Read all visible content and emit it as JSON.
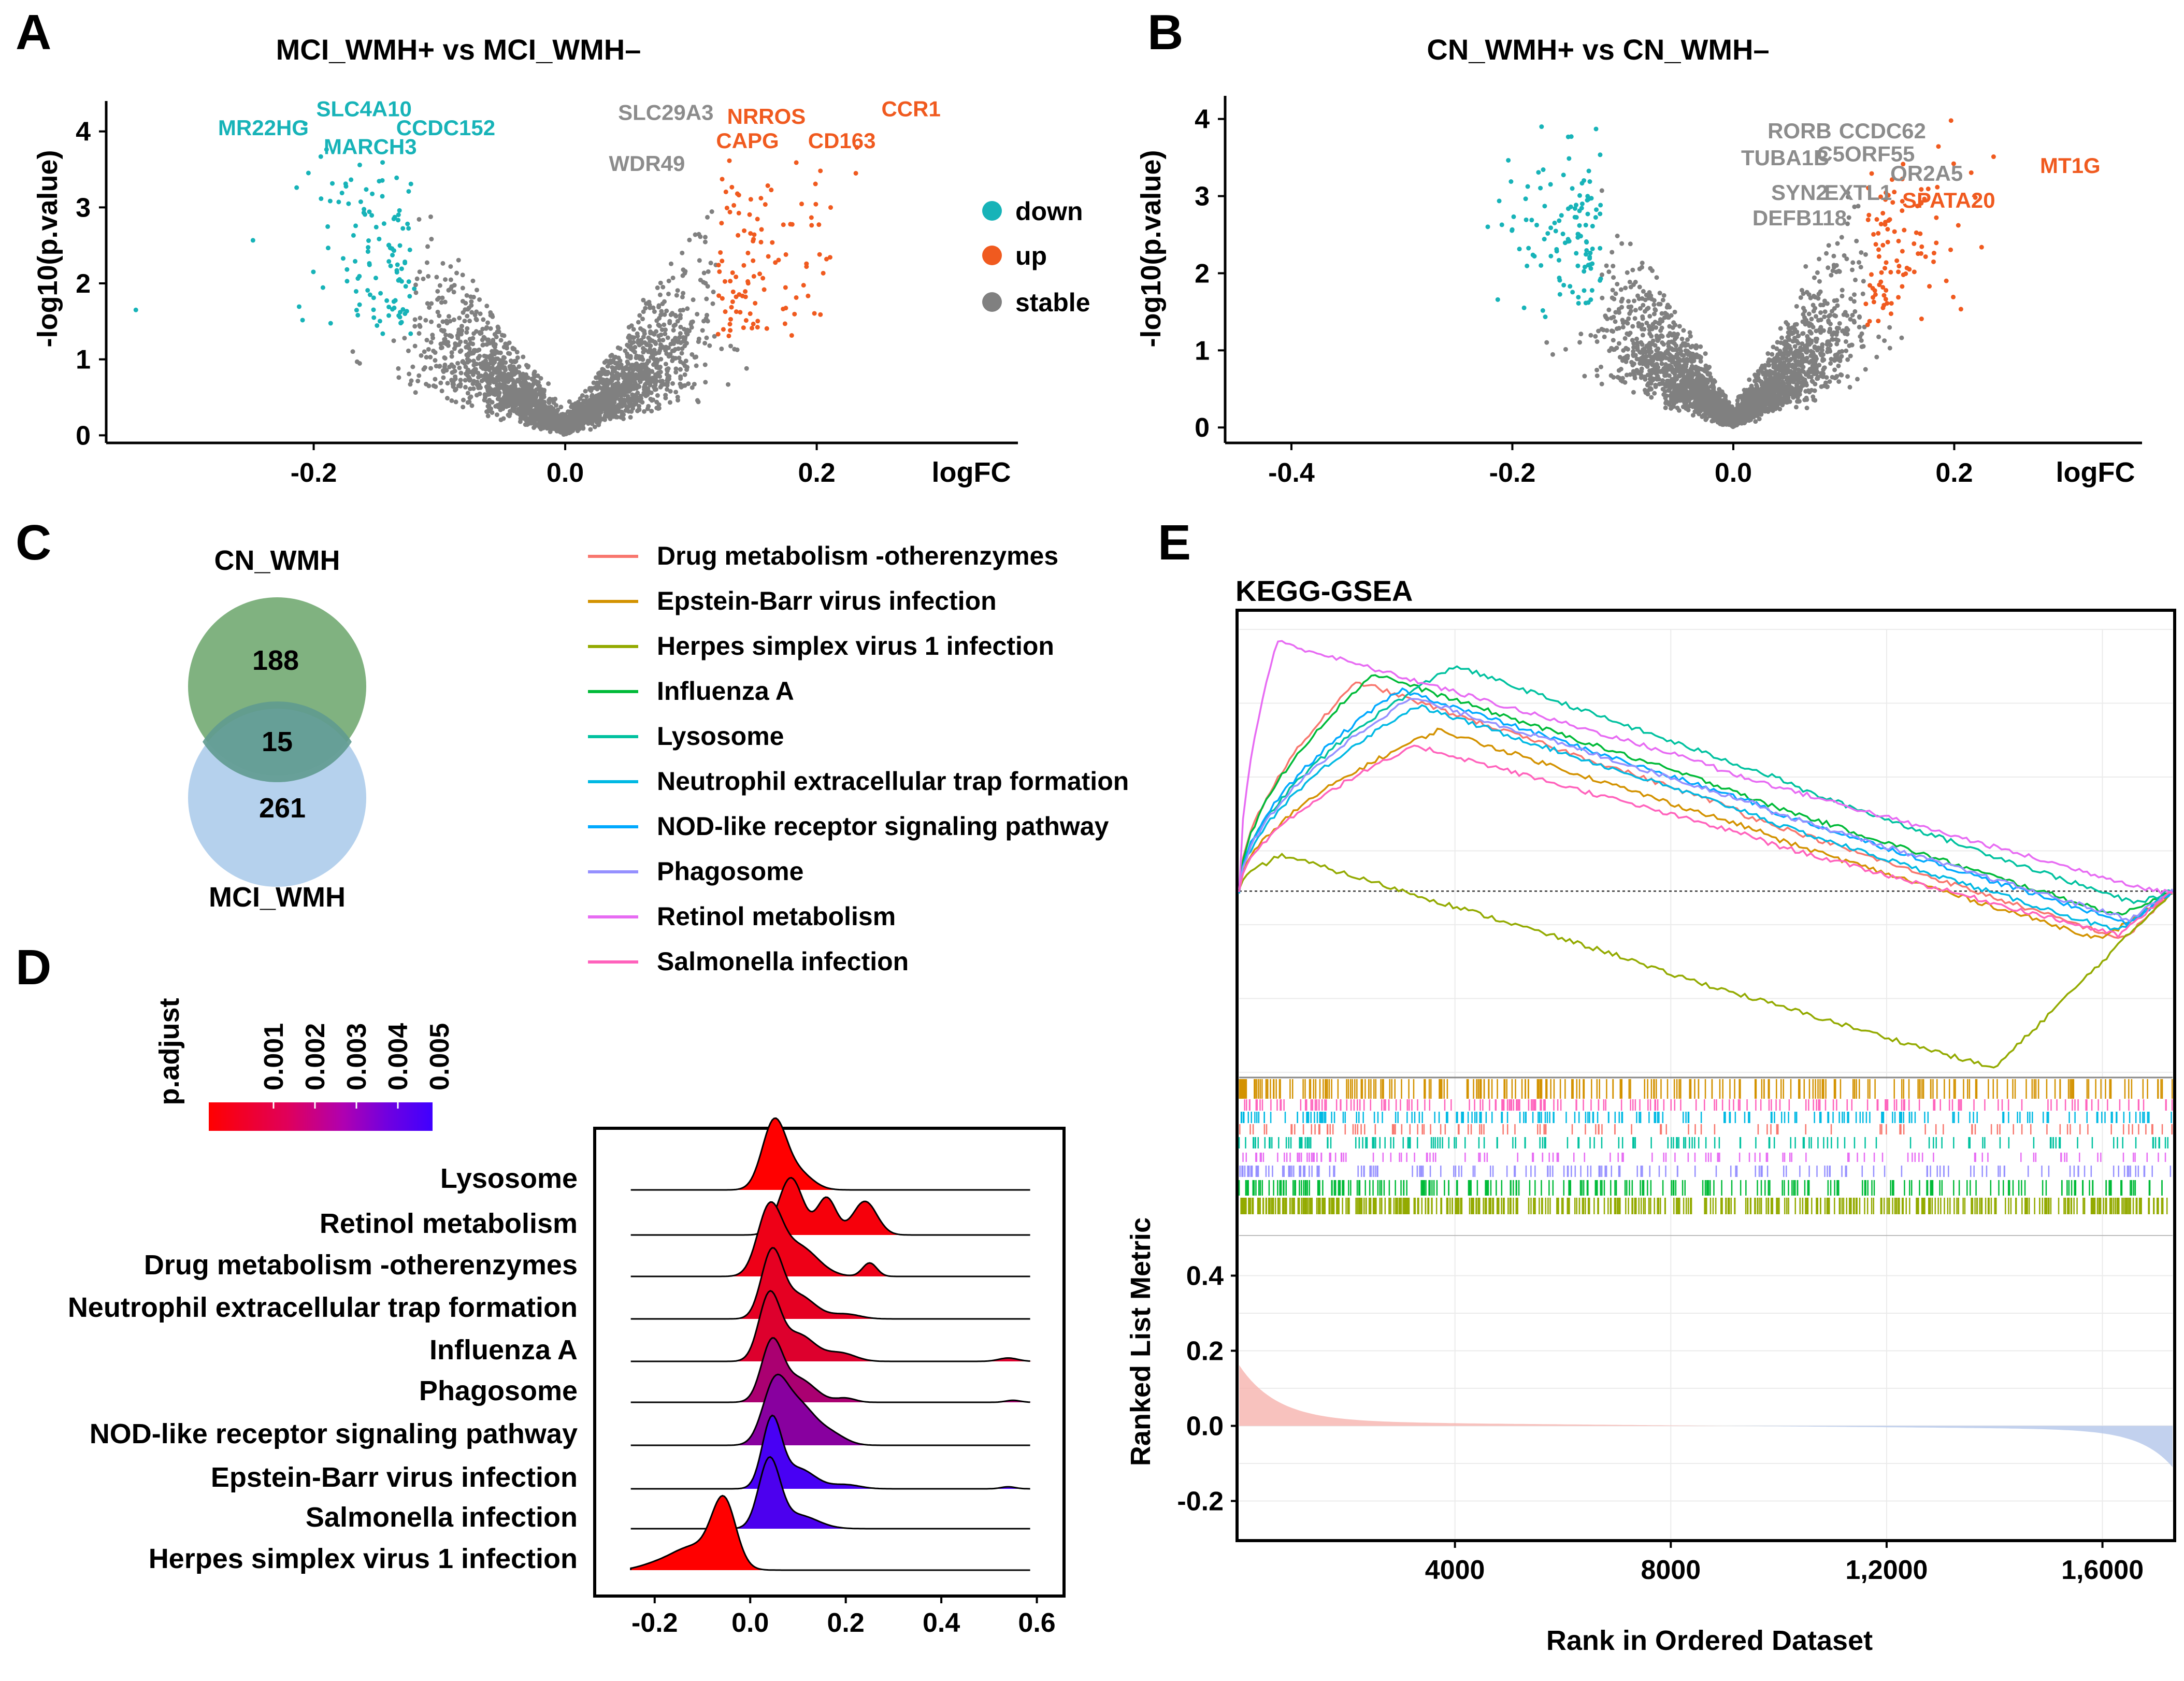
{
  "colors": {
    "down": "#17b3b8",
    "up": "#f05a1f",
    "stable": "#808080",
    "gray_label": "#8c8c8c",
    "venn_cn": "#6aa56a",
    "venn_mci": "#a8c9ea"
  },
  "panel_labels": {
    "A": "A",
    "B": "B",
    "C": "C",
    "D": "D",
    "E": "E"
  },
  "chart_data": [
    {
      "id": "A",
      "type": "scatter",
      "title": "MCI_WMH+  vs  MCI_WMH–",
      "xlabel": "logFC",
      "ylabel": "-log10(p.value)",
      "xlim": [
        -0.365,
        0.36
      ],
      "ylim": [
        -0.1,
        4.4
      ],
      "xticks": [
        -0.2,
        0.0,
        0.2
      ],
      "xtick_labels": [
        "-0.2",
        "0.0",
        "0.2"
      ],
      "yticks": [
        0,
        1,
        2,
        3,
        4
      ],
      "ytick_labels": [
        "0",
        "1",
        "2",
        "3",
        "4"
      ],
      "thresholds": {
        "logfc": 0.12,
        "neglog10p": 1.3
      },
      "legend": {
        "position": "right",
        "items": [
          {
            "label": "down",
            "color": "#17b3b8"
          },
          {
            "label": "up",
            "color": "#f05a1f"
          },
          {
            "label": "stable",
            "color": "#808080"
          }
        ]
      },
      "annotations": [
        {
          "text": "SLC4A10",
          "x": -0.16,
          "y": 4.2,
          "group": "down"
        },
        {
          "text": "MR22HG",
          "x": -0.24,
          "y": 3.95,
          "group": "down"
        },
        {
          "text": "CCDC152",
          "x": -0.095,
          "y": 3.95,
          "group": "down"
        },
        {
          "text": "MARCH3",
          "x": -0.155,
          "y": 3.7,
          "group": "down"
        },
        {
          "text": "SLC29A3",
          "x": 0.08,
          "y": 4.15,
          "group": "stable"
        },
        {
          "text": "WDR49",
          "x": 0.065,
          "y": 3.48,
          "group": "stable"
        },
        {
          "text": "NRROS",
          "x": 0.16,
          "y": 4.1,
          "group": "up"
        },
        {
          "text": "CCR1",
          "x": 0.275,
          "y": 4.2,
          "group": "up"
        },
        {
          "text": "CAPG",
          "x": 0.145,
          "y": 3.78,
          "group": "up"
        },
        {
          "text": "CD163",
          "x": 0.22,
          "y": 3.78,
          "group": "up"
        }
      ]
    },
    {
      "id": "B",
      "type": "scatter",
      "title": "CN_WMH+  vs  CN_WMH–",
      "xlabel": "logFC",
      "ylabel": "-log10(p.value)",
      "xlim": [
        -0.46,
        0.37
      ],
      "ylim": [
        -0.2,
        4.3
      ],
      "xticks": [
        -0.4,
        -0.2,
        0.0,
        0.2
      ],
      "xtick_labels": [
        "-0.4",
        "-0.2",
        "0.0",
        "0.2"
      ],
      "yticks": [
        0,
        1,
        2,
        3,
        4
      ],
      "ytick_labels": [
        "0",
        "1",
        "2",
        "3",
        "4"
      ],
      "thresholds": {
        "logfc": 0.12,
        "neglog10p": 1.3
      },
      "annotations": [
        {
          "text": "RORB",
          "x": 0.06,
          "y": 3.75,
          "group": "stable"
        },
        {
          "text": "CCDC62",
          "x": 0.135,
          "y": 3.75,
          "group": "stable"
        },
        {
          "text": "TUBA1B",
          "x": 0.047,
          "y": 3.4,
          "group": "stable"
        },
        {
          "text": "C5ORF55",
          "x": 0.12,
          "y": 3.45,
          "group": "stable"
        },
        {
          "text": "OR2A5",
          "x": 0.175,
          "y": 3.2,
          "group": "stable"
        },
        {
          "text": "MT1G",
          "x": 0.305,
          "y": 3.3,
          "group": "up"
        },
        {
          "text": "SYN2",
          "x": 0.06,
          "y": 2.95,
          "group": "stable"
        },
        {
          "text": "EXTL1",
          "x": 0.113,
          "y": 2.95,
          "group": "stable"
        },
        {
          "text": "SPATA20",
          "x": 0.195,
          "y": 2.85,
          "group": "up"
        },
        {
          "text": "DEFB118",
          "x": 0.06,
          "y": 2.62,
          "group": "stable"
        }
      ]
    },
    {
      "id": "D",
      "type": "ridgeline",
      "title": "",
      "xlim": [
        -0.28,
        0.62
      ],
      "xticks": [
        -0.2,
        0.0,
        0.2,
        0.4,
        0.6
      ],
      "xtick_labels": [
        "-0.2",
        "0.0",
        "0.2",
        "0.4",
        "0.6"
      ],
      "colorbar": {
        "title": "p.adjust",
        "ticks": [
          "0.001",
          "0.002",
          "0.003",
          "0.004",
          "0.005"
        ],
        "low_color": "#ff0000",
        "high_color": "#3f00ff"
      },
      "series": [
        {
          "name": "Lysosome",
          "p_adjust": 0.0005,
          "peaks": [
            [
              0.05,
              1.0,
              0.025
            ],
            [
              0.1,
              0.25,
              0.03
            ]
          ]
        },
        {
          "name": "Retinol metabolism",
          "p_adjust": 0.0007,
          "peaks": [
            [
              0.085,
              0.85,
              0.025
            ],
            [
              0.16,
              0.55,
              0.02
            ],
            [
              0.24,
              0.5,
              0.025
            ]
          ]
        },
        {
          "name": "Drug metabolism -otherenzymes",
          "p_adjust": 0.0009,
          "peaks": [
            [
              0.04,
              0.95,
              0.025
            ],
            [
              0.1,
              0.45,
              0.04
            ],
            [
              0.25,
              0.2,
              0.015
            ]
          ]
        },
        {
          "name": "Neutrophil extracellular trap formation",
          "p_adjust": 0.0011,
          "peaks": [
            [
              0.045,
              0.95,
              0.022
            ],
            [
              0.1,
              0.35,
              0.035
            ],
            [
              0.2,
              0.07,
              0.03
            ]
          ]
        },
        {
          "name": "Influenza A",
          "p_adjust": 0.0013,
          "peaks": [
            [
              0.04,
              0.95,
              0.022
            ],
            [
              0.1,
              0.4,
              0.035
            ],
            [
              0.19,
              0.12,
              0.03
            ],
            [
              0.54,
              0.05,
              0.02
            ]
          ]
        },
        {
          "name": "Phagosome",
          "p_adjust": 0.0025,
          "peaks": [
            [
              0.045,
              0.85,
              0.022
            ],
            [
              0.1,
              0.35,
              0.035
            ],
            [
              0.2,
              0.06,
              0.02
            ],
            [
              0.55,
              0.03,
              0.015
            ]
          ]
        },
        {
          "name": "NOD-like receptor signaling pathway",
          "p_adjust": 0.0033,
          "peaks": [
            [
              0.05,
              0.8,
              0.025
            ],
            [
              0.1,
              0.6,
              0.035
            ],
            [
              0.17,
              0.15,
              0.03
            ]
          ]
        },
        {
          "name": "Epstein-Barr virus infection",
          "p_adjust": 0.0048,
          "peaks": [
            [
              0.045,
              1.0,
              0.02
            ],
            [
              0.1,
              0.3,
              0.035
            ],
            [
              0.2,
              0.06,
              0.03
            ],
            [
              0.54,
              0.03,
              0.015
            ]
          ]
        },
        {
          "name": "Salmonella infection",
          "p_adjust": 0.0047,
          "peaks": [
            [
              0.04,
              1.0,
              0.022
            ],
            [
              0.1,
              0.2,
              0.04
            ]
          ]
        },
        {
          "name": "Herpes simplex virus 1 infection",
          "p_adjust": 0.0005,
          "peaks": [
            [
              -0.055,
              0.95,
              0.025
            ],
            [
              -0.12,
              0.35,
              0.05
            ],
            [
              -0.21,
              0.04,
              0.03
            ]
          ]
        }
      ]
    },
    {
      "id": "E",
      "type": "line",
      "title": "KEGG-GSEA",
      "xlabel": "Rank in Ordered Dataset",
      "ylabel": "Ranked List Metric",
      "n_genes": 17300,
      "xticks": [
        4000,
        8000,
        12000,
        16000
      ],
      "xtick_labels": [
        "4000",
        "8000",
        "1,2000",
        "1,6000"
      ],
      "metric_yticks": [
        0.4,
        0.2,
        0.0,
        -0.2
      ],
      "metric_ytick_labels": [
        "0.4",
        "0.2",
        "0.0",
        "-0.2"
      ],
      "metric_ylim": [
        -0.3,
        0.5
      ],
      "es_ylim": [
        -0.45,
        0.65
      ],
      "series": [
        {
          "name": "Drug metabolism -otherenzymes",
          "color": "#f8766d",
          "peak_rank": 2200,
          "peak_es": 0.52,
          "end_es": -0.12,
          "end_rank": 16400
        },
        {
          "name": "Epstein-Barr virus infection",
          "color": "#d39200",
          "peak_rank": 3700,
          "peak_es": 0.4,
          "end_es": -0.12,
          "end_rank": 16000
        },
        {
          "name": "Herpes simplex virus 1 infection",
          "color": "#93aa00",
          "peak_rank": 800,
          "peak_es": 0.09,
          "end_es": -0.44,
          "end_rank": 14000
        },
        {
          "name": "Influenza A",
          "color": "#00ba38",
          "peak_rank": 2500,
          "peak_es": 0.54,
          "end_es": -0.06,
          "end_rank": 16300
        },
        {
          "name": "Lysosome",
          "color": "#00c19f",
          "peak_rank": 4000,
          "peak_es": 0.56,
          "end_es": -0.03,
          "end_rank": 16600
        },
        {
          "name": "Neutrophil extracellular trap formation",
          "color": "#00b9e3",
          "peak_rank": 3300,
          "peak_es": 0.46,
          "end_es": -0.1,
          "end_rank": 16300
        },
        {
          "name": "NOD-like receptor signaling pathway",
          "color": "#00a9ff",
          "peak_rank": 3000,
          "peak_es": 0.5,
          "end_es": -0.08,
          "end_rank": 16500
        },
        {
          "name": "Phagosome",
          "color": "#9590ff",
          "peak_rank": 3200,
          "peak_es": 0.48,
          "end_es": -0.07,
          "end_rank": 16500
        },
        {
          "name": "Retinol metabolism",
          "color": "#e76bf3",
          "peak_rank": 700,
          "peak_es": 0.62,
          "end_es": 0.0,
          "end_rank": 17000
        },
        {
          "name": "Salmonella infection",
          "color": "#ff62bc",
          "peak_rank": 3300,
          "peak_es": 0.36,
          "end_es": -0.11,
          "end_rank": 16300
        }
      ]
    }
  ],
  "venn": {
    "top_label": "CN_WMH",
    "bottom_label": "MCI_WMH",
    "only_cn": "188",
    "overlap": "15",
    "only_mci": "261"
  },
  "pathway_legend": [
    {
      "label": "Drug metabolism -otherenzymes",
      "color": "#f8766d"
    },
    {
      "label": "Epstein-Barr virus infection",
      "color": "#d39200"
    },
    {
      "label": "Herpes simplex virus 1 infection",
      "color": "#93aa00"
    },
    {
      "label": "Influenza A",
      "color": "#00ba38"
    },
    {
      "label": "Lysosome",
      "color": "#00c19f"
    },
    {
      "label": "Neutrophil extracellular trap formation",
      "color": "#00b9e3"
    },
    {
      "label": "NOD-like receptor signaling pathway",
      "color": "#00a9ff"
    },
    {
      "label": "Phagosome",
      "color": "#9590ff"
    },
    {
      "label": "Retinol metabolism",
      "color": "#e76bf3"
    },
    {
      "label": "Salmonella infection",
      "color": "#ff62bc"
    }
  ]
}
